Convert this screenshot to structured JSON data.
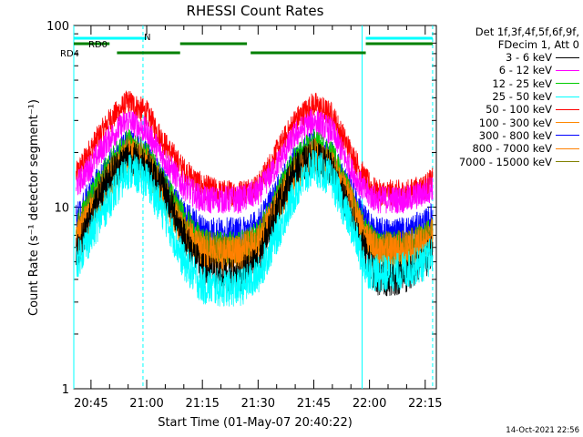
{
  "chart_data": {
    "type": "line",
    "title": "RHESSI Count Rates",
    "xlabel": "Start Time (01-May-07 20:40:22)",
    "ylabel": "Count Rate (s⁻¹ detector segment⁻¹)",
    "yscale": "log",
    "ylim": [
      1,
      100
    ],
    "xlim": [
      "20:40:22",
      "22:18:00"
    ],
    "y_tick_labels": [
      "1",
      "10",
      "100"
    ],
    "x_tick_labels": [
      "20:45",
      "21:00",
      "21:15",
      "21:30",
      "21:45",
      "22:00",
      "22:15"
    ],
    "legend_header": [
      "Det 1f,3f,4f,5f,6f,9f,",
      "FDecim 1, Att 0"
    ],
    "legend_position": "right",
    "series": [
      {
        "name": "3 - 6 keV",
        "color": "#000000",
        "x": [
          "20:41",
          "20:45",
          "20:50",
          "20:55",
          "21:00",
          "21:05",
          "21:10",
          "21:15",
          "21:20",
          "21:25",
          "21:30",
          "21:35",
          "21:40",
          "21:45",
          "21:50",
          "21:55",
          "21:59",
          "22:02",
          "22:05",
          "22:10",
          "22:15",
          "22:17"
        ],
        "values": [
          5.5,
          9,
          15,
          19,
          17,
          12,
          7,
          4.5,
          4.2,
          4.2,
          5,
          10,
          16,
          19,
          16,
          9,
          5.5,
          4,
          4,
          4.2,
          5,
          6
        ]
      },
      {
        "name": "6 - 12 keV",
        "color": "#ff00ff",
        "x": [
          "20:41",
          "20:45",
          "20:50",
          "20:55",
          "21:00",
          "21:05",
          "21:10",
          "21:15",
          "21:20",
          "21:25",
          "21:30",
          "21:35",
          "21:40",
          "21:45",
          "21:50",
          "21:55",
          "21:59",
          "22:02",
          "22:05",
          "22:10",
          "22:15",
          "22:17"
        ],
        "values": [
          13,
          17,
          24,
          30,
          26,
          18,
          13,
          11,
          11,
          11,
          12,
          17,
          25,
          30,
          26,
          16,
          12,
          11,
          11,
          11,
          12,
          13
        ]
      },
      {
        "name": "12 - 25 keV",
        "color": "#00cc00",
        "x": [
          "20:41",
          "20:45",
          "20:50",
          "20:55",
          "21:00",
          "21:05",
          "21:10",
          "21:15",
          "21:20",
          "21:25",
          "21:30",
          "21:35",
          "21:40",
          "21:45",
          "21:50",
          "21:55",
          "21:59",
          "22:02",
          "22:05",
          "22:10",
          "22:15",
          "22:17"
        ],
        "values": [
          7.5,
          11,
          17,
          22,
          19,
          13,
          8.5,
          6.2,
          6,
          6,
          6.8,
          11,
          18,
          22,
          19,
          11,
          7.2,
          6,
          6,
          6,
          6.8,
          7.2
        ]
      },
      {
        "name": "25 - 50 keV",
        "color": "#00ffff",
        "x": [
          "20:41",
          "20:45",
          "20:50",
          "20:55",
          "21:00",
          "21:05",
          "21:10",
          "21:15",
          "21:20",
          "21:25",
          "21:30",
          "21:35",
          "21:40",
          "21:45",
          "21:50",
          "21:55",
          "21:59",
          "22:02",
          "22:05",
          "22:10",
          "22:15",
          "22:17"
        ],
        "values": [
          5,
          7,
          11,
          16,
          14,
          9,
          5,
          3.7,
          3.6,
          3.6,
          4.2,
          7,
          12,
          17,
          14,
          8,
          4.6,
          4.3,
          4.3,
          4.5,
          5,
          5.5
        ]
      },
      {
        "name": "50 - 100 keV",
        "color": "#ff0000",
        "x": [
          "20:41",
          "20:45",
          "20:50",
          "20:55",
          "21:00",
          "21:05",
          "21:10",
          "21:15",
          "21:20",
          "21:25",
          "21:30",
          "21:35",
          "21:40",
          "21:45",
          "21:50",
          "21:55",
          "21:59",
          "22:02",
          "22:05",
          "22:10",
          "22:15",
          "22:17"
        ],
        "values": [
          15,
          21,
          30,
          38,
          33,
          22,
          16,
          13,
          12,
          12,
          13,
          20,
          30,
          37,
          32,
          20,
          14,
          12,
          12,
          12,
          13,
          14
        ]
      },
      {
        "name": "100 - 300 keV",
        "color": "#ff8800",
        "x": [
          "20:41",
          "20:45",
          "20:50",
          "20:55",
          "21:00",
          "21:05",
          "21:10",
          "21:15",
          "21:20",
          "21:25",
          "21:30",
          "21:35",
          "21:40",
          "21:45",
          "21:50",
          "21:55",
          "21:59",
          "22:02",
          "22:05",
          "22:10",
          "22:15",
          "22:17"
        ],
        "values": [
          6.5,
          9,
          14,
          19,
          17,
          11,
          7,
          5.5,
          5.3,
          5.3,
          6,
          9.5,
          15,
          19,
          16,
          10,
          6.3,
          5.5,
          5.5,
          5.6,
          6.2,
          6.8
        ]
      },
      {
        "name": "300 - 800 keV",
        "color": "#0000ff",
        "x": [
          "20:41",
          "20:45",
          "20:50",
          "20:55",
          "21:00",
          "21:05",
          "21:10",
          "21:15",
          "21:20",
          "21:25",
          "21:30",
          "21:35",
          "21:40",
          "21:45",
          "21:50",
          "21:55",
          "21:59",
          "22:02",
          "22:05",
          "22:10",
          "22:15",
          "22:17"
        ],
        "values": [
          8.5,
          12,
          17,
          22,
          19,
          13,
          9,
          7.5,
          7.2,
          7.2,
          8,
          12,
          18,
          22,
          19,
          12,
          8.3,
          7.2,
          7.2,
          7.3,
          8,
          8.8
        ]
      },
      {
        "name": "800 - 7000 keV",
        "color": "#ff8000",
        "x": [
          "20:41",
          "20:45",
          "20:50",
          "20:55",
          "21:00",
          "21:05",
          "21:10",
          "21:15",
          "21:20",
          "21:25",
          "21:30",
          "21:35",
          "21:40",
          "21:45",
          "21:50",
          "21:55",
          "21:59",
          "22:02",
          "22:05",
          "22:10",
          "22:15",
          "22:17"
        ],
        "values": [
          6.8,
          9.5,
          14.5,
          19.5,
          17.5,
          11.5,
          7.3,
          5.8,
          5.6,
          5.6,
          6.3,
          10,
          15.5,
          19.5,
          16.5,
          10.5,
          6.6,
          5.8,
          5.8,
          5.9,
          6.5,
          7.1
        ]
      },
      {
        "name": "7000 - 15000 keV",
        "color": "#808000",
        "x": [
          "20:41",
          "20:45",
          "20:50",
          "20:55",
          "21:00",
          "21:05",
          "21:10",
          "21:15",
          "21:20",
          "21:25",
          "21:30",
          "21:35",
          "21:40",
          "21:45",
          "21:50",
          "21:55",
          "21:59",
          "22:02",
          "22:05",
          "22:10",
          "22:15",
          "22:17"
        ],
        "values": [
          7,
          10,
          15,
          20,
          18,
          12,
          7.6,
          6,
          5.8,
          5.8,
          6.5,
          10.2,
          16,
          20,
          17,
          10.8,
          6.8,
          6,
          6,
          6.1,
          6.7,
          7.3
        ]
      }
    ],
    "markers": [
      {
        "label": "N",
        "color": "#00ffff",
        "segments": [
          [
            "20:40:22",
            "21:00"
          ],
          [
            "21:59",
            "22:17"
          ]
        ]
      },
      {
        "label": "RD0",
        "color": "#008000",
        "segments": [
          [
            "20:40:22",
            "20:50"
          ],
          [
            "21:09",
            "21:27"
          ],
          [
            "21:59",
            "22:17"
          ]
        ]
      },
      {
        "label": "RD4",
        "color": "#008000",
        "segments": [
          [
            "20:52",
            "21:09"
          ],
          [
            "21:28",
            "21:59"
          ]
        ]
      }
    ],
    "vertical_lines": [
      {
        "time": "20:40:22",
        "style": "solid",
        "color": "#00ffff"
      },
      {
        "time": "20:59",
        "style": "dashed",
        "color": "#00ffff"
      },
      {
        "time": "21:58",
        "style": "solid",
        "color": "#00ffff"
      },
      {
        "time": "22:17",
        "style": "dashed",
        "color": "#00ffff"
      }
    ],
    "grid": false
  },
  "timestamp": "14-Oct-2021 22:56"
}
